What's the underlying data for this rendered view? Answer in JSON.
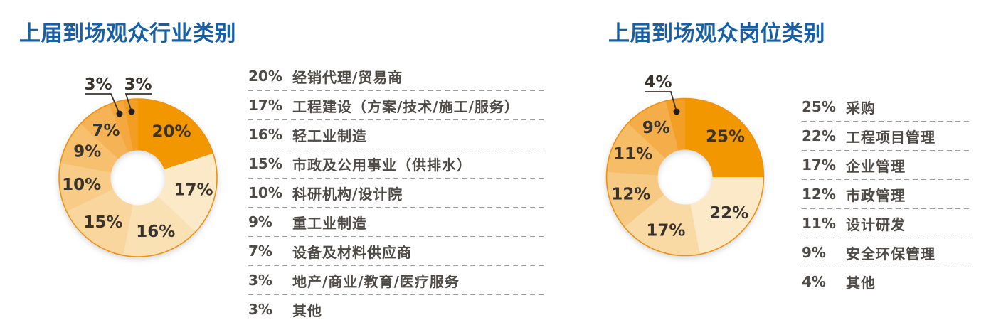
{
  "page_background": "#FFFFFF",
  "style_colors": {
    "title": "#1760A8",
    "slice_label": "#3A332B",
    "legend_text": "#4E4A46",
    "separator": "#9B9B9B",
    "donut_outline": "#ED920A",
    "callout_dot": "#231F1C"
  },
  "left_chart": {
    "title": "上届到场观众行业类别"
  },
  "right_chart": {
    "title": "上届到场观众岗位类别"
  },
  "chart_data": [
    {
      "type": "pie",
      "subtype": "donut",
      "title": "上届到场观众行业类别",
      "direction": "clockwise",
      "start_angle_deg": 0,
      "legend_position": "right",
      "outline_color": "#ED920A",
      "slices": [
        {
          "label": "经销代理/贸易商",
          "value": 20,
          "display": "20%",
          "color": "#F39704",
          "callout": false
        },
        {
          "label": "工程建设（方案/技术/施工/服务）",
          "value": 17,
          "display": "17%",
          "color": "#FBE9C8",
          "callout": false
        },
        {
          "label": "轻工业制造",
          "value": 16,
          "display": "16%",
          "color": "#FAE1B4",
          "callout": false
        },
        {
          "label": "市政及公用事业（供排水）",
          "value": 15,
          "display": "15%",
          "color": "#F9D69D",
          "callout": false
        },
        {
          "label": "科研机构/设计院",
          "value": 10,
          "display": "10%",
          "color": "#F8CC86",
          "callout": false
        },
        {
          "label": "重工业制造",
          "value": 9,
          "display": "9%",
          "color": "#F6C06E",
          "callout": false
        },
        {
          "label": "设备及材料供应商",
          "value": 7,
          "display": "7%",
          "color": "#F5B357",
          "callout": false
        },
        {
          "label": "地产/商业/教育/医疗服务",
          "value": 3,
          "display": "3%",
          "color": "#F4A83D",
          "callout": true
        },
        {
          "label": "其他",
          "value": 3,
          "display": "3%",
          "color": "#F39D22",
          "callout": true
        }
      ]
    },
    {
      "type": "pie",
      "subtype": "donut",
      "title": "上届到场观众岗位类别",
      "direction": "clockwise",
      "start_angle_deg": 0,
      "legend_position": "right",
      "outline_color": "#ED920A",
      "slices": [
        {
          "label": "采购",
          "value": 25,
          "display": "25%",
          "color": "#F39704",
          "callout": false
        },
        {
          "label": "工程项目管理",
          "value": 22,
          "display": "22%",
          "color": "#FBE9C8",
          "callout": false
        },
        {
          "label": "企业管理",
          "value": 17,
          "display": "17%",
          "color": "#F9D9A4",
          "callout": false
        },
        {
          "label": "市政管理",
          "value": 12,
          "display": "12%",
          "color": "#F7CA84",
          "callout": false
        },
        {
          "label": "设计研发",
          "value": 11,
          "display": "11%",
          "color": "#F6BC66",
          "callout": false
        },
        {
          "label": "安全环保管理",
          "value": 9,
          "display": "9%",
          "color": "#F5AD48",
          "callout": false
        },
        {
          "label": "其他",
          "value": 4,
          "display": "4%",
          "color": "#F39F28",
          "callout": true
        }
      ]
    }
  ]
}
